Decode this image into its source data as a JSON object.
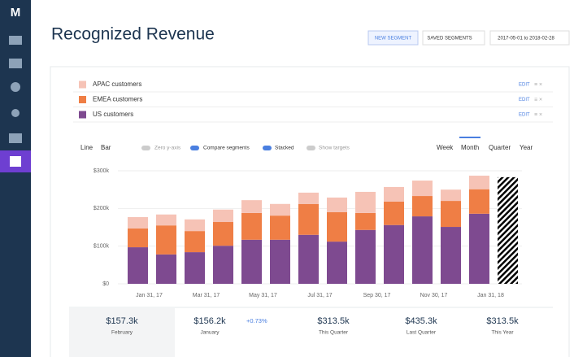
{
  "header": {
    "title": "Recognized Revenue",
    "buttons": [
      "NEW SEGMENT",
      "SAVED SEGMENTS",
      "2017-05-01 to 2018-02-28"
    ]
  },
  "segments": {
    "edit": "EDIT"
  },
  "controls": {
    "chart_types": [
      "Line",
      "Bar"
    ],
    "toggles": [
      "Zero y-axis",
      "Compare segments",
      "Stacked",
      "Show targets"
    ],
    "periods": [
      "Week",
      "Month",
      "Quarter",
      "Year"
    ]
  },
  "chart_data": {
    "type": "bar",
    "stacked": true,
    "categories": [
      "Jan 31, 17",
      null,
      "Mar 31, 17",
      null,
      "May 31, 17",
      null,
      "Jul 31, 17",
      null,
      "Sep 30, 17",
      null,
      "Nov 30, 17",
      null,
      "Jan 31, 18",
      null
    ],
    "series": [
      {
        "name": "APAC customers",
        "color": "#f6c3b6",
        "values": [
          30000,
          29000,
          31000,
          33000,
          34000,
          31000,
          30000,
          39000,
          56000,
          39000,
          41000,
          30000,
          36000,
          45000
        ]
      },
      {
        "name": "EMEA customers",
        "color": "#ef7e45",
        "values": [
          50000,
          77000,
          56000,
          63000,
          71000,
          64000,
          82000,
          78000,
          45000,
          62000,
          54000,
          69000,
          65000,
          87000
        ]
      },
      {
        "name": "US customers",
        "color": "#7e4a90",
        "values": [
          97000,
          78000,
          84000,
          101000,
          117000,
          117000,
          130000,
          112000,
          143000,
          156000,
          179000,
          151000,
          186000,
          151000
        ]
      }
    ],
    "ylim": [
      0,
      300000
    ],
    "yticks": [
      {
        "value": 0,
        "label": "$0"
      },
      {
        "value": 100000,
        "label": "$100k"
      },
      {
        "value": 200000,
        "label": "$200k"
      },
      {
        "value": 300000,
        "label": "$300k"
      }
    ],
    "grid": true
  },
  "summary": [
    {
      "value": "$157.3k",
      "label": "February"
    },
    {
      "value": "$156.2k",
      "label": "January",
      "change": "+0.73%"
    },
    {
      "value": "$313.5k",
      "label": "This Quarter"
    },
    {
      "value": "$435.3k",
      "label": "Last Quarter"
    },
    {
      "value": "$313.5k",
      "label": "This Year"
    }
  ]
}
